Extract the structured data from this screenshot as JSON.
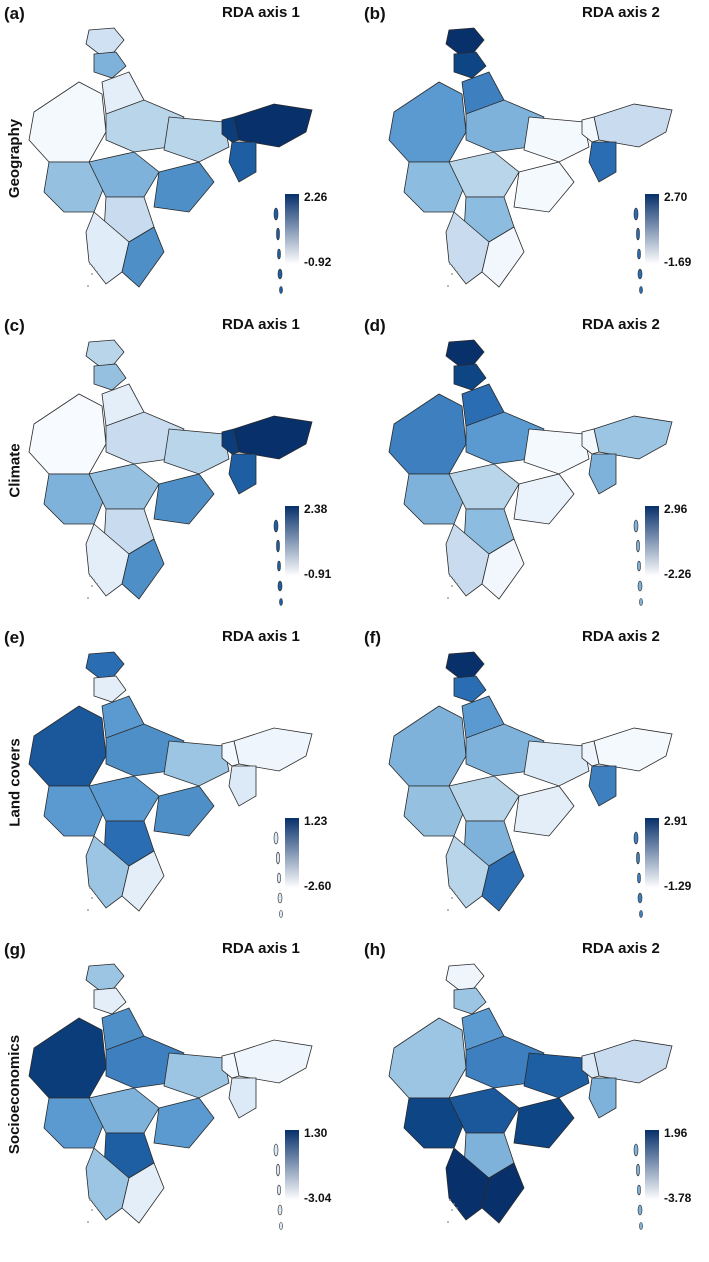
{
  "figure": {
    "rows": [
      {
        "label": "Geography"
      },
      {
        "label": "Climate"
      },
      {
        "label": "Land covers"
      },
      {
        "label": "Socioeconomics"
      }
    ],
    "panels": [
      {
        "letter": "(a)",
        "title": "RDA axis 1",
        "legend_max": "2.26",
        "legend_min": "-0.92",
        "region_shades": [
          "#cfe1f2",
          "#7fb2da",
          "#f4f9fe",
          "#e3eef8",
          "#b9d5ea",
          "#95c0e0",
          "#7fb2da",
          "#b9d5ea",
          "#c9dcef",
          "#4e8fc7",
          "#e0ecf7",
          "#4e8fc7",
          "#08306b",
          "#1e5fa3",
          "#0b3d7a"
        ]
      },
      {
        "letter": "(b)",
        "title": "RDA axis 2",
        "legend_max": "2.70",
        "legend_min": "-1.69",
        "region_shades": [
          "#08306b",
          "#0e4585",
          "#5a9ad0",
          "#3d7fbf",
          "#7fb2da",
          "#8cbce0",
          "#b9d5ea",
          "#f4f9fe",
          "#8cbce0",
          "#f4f9fe",
          "#c9dcef",
          "#f2f7fd",
          "#c9dcef",
          "#2a6db2",
          "#f4f9fe"
        ]
      },
      {
        "letter": "(c)",
        "title": "RDA axis 1",
        "legend_max": "2.38",
        "legend_min": "-0.91",
        "region_shades": [
          "#b9d5ea",
          "#95c0e0",
          "#f7fbff",
          "#e3eef8",
          "#c9dcef",
          "#7fb2da",
          "#95c0e0",
          "#b9d5ea",
          "#c9dcef",
          "#4e8fc7",
          "#e3eef8",
          "#4e8fc7",
          "#08306b",
          "#1e5fa3",
          "#0b3d7a"
        ]
      },
      {
        "letter": "(d)",
        "title": "RDA axis 2",
        "legend_max": "2.96",
        "legend_min": "-2.26",
        "region_shades": [
          "#08306b",
          "#0e4585",
          "#3d7fbf",
          "#2a6db2",
          "#5a9ad0",
          "#7fb2da",
          "#b9d5ea",
          "#f4f9fe",
          "#8cbce0",
          "#eaf2fb",
          "#c9dcef",
          "#f2f7fd",
          "#9cc5e3",
          "#7fb2da",
          "#f4f9fe"
        ]
      },
      {
        "letter": "(e)",
        "title": "RDA axis 1",
        "legend_max": "1.23",
        "legend_min": "-2.60",
        "region_shades": [
          "#2a6db2",
          "#e3eef8",
          "#1a579b",
          "#5a9ad0",
          "#4e8fc7",
          "#5a9ad0",
          "#5a9ad0",
          "#9cc5e3",
          "#2a6db2",
          "#4e8fc7",
          "#9cc5e3",
          "#e3eef8",
          "#eef5fc",
          "#dce9f6",
          "#f4f9fe"
        ]
      },
      {
        "letter": "(f)",
        "title": "RDA axis 2",
        "legend_max": "2.91",
        "legend_min": "-1.29",
        "region_shades": [
          "#08306b",
          "#2a6db2",
          "#7fb2da",
          "#5a9ad0",
          "#7fb2da",
          "#95c0e0",
          "#b9d5ea",
          "#dce9f6",
          "#7fb2da",
          "#e3eef8",
          "#b9d5ea",
          "#2a6db2",
          "#f4f9fe",
          "#3d7fbf",
          "#eef5fc"
        ]
      },
      {
        "letter": "(g)",
        "title": "RDA axis 1",
        "legend_max": "1.30",
        "legend_min": "-3.04",
        "region_shades": [
          "#9cc5e3",
          "#e3eef8",
          "#0b3d7a",
          "#4e8fc7",
          "#3d7fbf",
          "#5a9ad0",
          "#7fb2da",
          "#9cc5e3",
          "#1e5fa3",
          "#5a9ad0",
          "#9cc5e3",
          "#e3eef8",
          "#eef5fc",
          "#dce9f6",
          "#f4f9fe"
        ]
      },
      {
        "letter": "(h)",
        "title": "RDA axis 2",
        "legend_max": "1.96",
        "legend_min": "-3.78",
        "region_shades": [
          "#eef5fc",
          "#9cc5e3",
          "#9cc5e3",
          "#5a9ad0",
          "#3d7fbf",
          "#0e4585",
          "#1a579b",
          "#1e5fa3",
          "#7fb2da",
          "#0e4585",
          "#08306b",
          "#08306b",
          "#c9dcef",
          "#7fb2da",
          "#dce9f6"
        ]
      }
    ]
  }
}
